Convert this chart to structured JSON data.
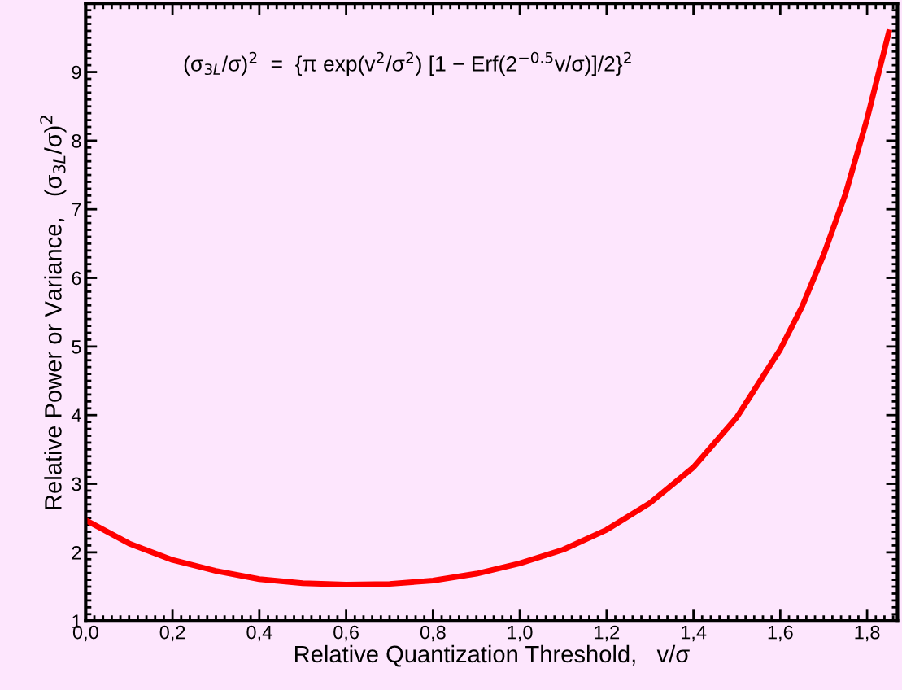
{
  "chart_data": {
    "type": "line",
    "xlabel": "Relative Quantization Threshold,   v/σ",
    "ylabel": "Relative Power or Variance,   (σ$_{3L}$/σ)$^{2}$",
    "annotations": [
      "(σ$_{3L}$/σ)$^{2}$  =  {π exp(v$^{2}$/σ$^{2}$) [1 − Erf(2$^{−0.5}$v/σ)]/2}$^{2}$"
    ],
    "x": [
      0,
      0.1,
      0.2,
      0.3,
      0.4,
      0.5,
      0.6,
      0.7,
      0.8,
      0.9,
      1.0,
      1.1,
      1.2,
      1.3,
      1.4,
      1.5,
      1.6,
      1.65,
      1.7,
      1.75,
      1.8,
      1.85
    ],
    "series": [
      {
        "color": "#ff0000",
        "values": [
          2.47,
          2.13,
          1.89,
          1.73,
          1.61,
          1.55,
          1.53,
          1.54,
          1.59,
          1.69,
          1.84,
          2.04,
          2.33,
          2.72,
          3.24,
          3.97,
          4.96,
          5.58,
          6.34,
          7.22,
          8.32,
          9.58
        ]
      }
    ],
    "xlim": [
      0,
      1.87
    ],
    "ylim": [
      1,
      10
    ],
    "xticks": [
      {
        "value": 0,
        "label": "0,0"
      },
      {
        "value": 0.2,
        "label": "0,2"
      },
      {
        "value": 0.4,
        "label": "0,4"
      },
      {
        "value": 0.6,
        "label": "0,6"
      },
      {
        "value": 0.8,
        "label": "0,8"
      },
      {
        "value": 1.0,
        "label": "1,0"
      },
      {
        "value": 1.2,
        "label": "1,2"
      },
      {
        "value": 1.4,
        "label": "1,4"
      },
      {
        "value": 1.6,
        "label": "1,6"
      },
      {
        "value": 1.8,
        "label": "1,8"
      }
    ],
    "yticks": [
      1,
      2,
      3,
      4,
      5,
      6,
      7,
      8,
      9,
      {
        "value": 10,
        "label": null
      }
    ],
    "grid": false,
    "legend": false,
    "marker": "none",
    "line_style": "solid"
  }
}
